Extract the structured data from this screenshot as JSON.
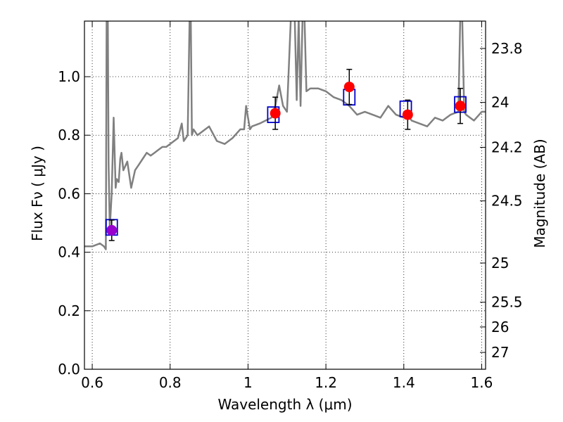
{
  "chart_data": {
    "type": "line",
    "title": "",
    "xlabel": "Wavelength  λ (μm)",
    "ylabel": "Flux  Fν  ( μJy )",
    "ylabel_right": "Magnitude (AB)",
    "xlim": [
      0.58,
      1.61
    ],
    "ylim": [
      0.0,
      1.19
    ],
    "grid": true,
    "x_ticks": [
      {
        "value": 0.6,
        "label": "0.6"
      },
      {
        "value": 0.8,
        "label": "0.8"
      },
      {
        "value": 1.0,
        "label": "1"
      },
      {
        "value": 1.2,
        "label": "1.2"
      },
      {
        "value": 1.4,
        "label": "1.4"
      },
      {
        "value": 1.6,
        "label": "1.6"
      }
    ],
    "y_ticks": [
      {
        "value": 0.0,
        "label": "0.0"
      },
      {
        "value": 0.2,
        "label": "0.2"
      },
      {
        "value": 0.4,
        "label": "0.4"
      },
      {
        "value": 0.6,
        "label": "0.6"
      },
      {
        "value": 0.8,
        "label": "0.8"
      },
      {
        "value": 1.0,
        "label": "1.0"
      }
    ],
    "right_ticks": [
      {
        "mag": 23.8,
        "label": "23.8"
      },
      {
        "mag": 24.0,
        "label": "24"
      },
      {
        "mag": 24.2,
        "label": "24.2"
      },
      {
        "mag": 24.5,
        "label": "24.5"
      },
      {
        "mag": 25.0,
        "label": "25"
      },
      {
        "mag": 25.5,
        "label": "25.5"
      },
      {
        "mag": 26.0,
        "label": "26"
      },
      {
        "mag": 27.0,
        "label": "27"
      }
    ],
    "colors": {
      "spectrum": "#808080",
      "observed": "#ff0000",
      "observed_first": "#9900cc",
      "model_box": "#0000cc",
      "errorbar": "#000000",
      "grid": "#000000"
    },
    "series": [
      {
        "name": "model spectrum",
        "kind": "line",
        "x": [
          0.58,
          0.6,
          0.62,
          0.63,
          0.635,
          0.637,
          0.64,
          0.642,
          0.645,
          0.65,
          0.655,
          0.66,
          0.663,
          0.668,
          0.672,
          0.675,
          0.68,
          0.69,
          0.7,
          0.71,
          0.72,
          0.73,
          0.74,
          0.75,
          0.76,
          0.77,
          0.78,
          0.79,
          0.8,
          0.81,
          0.82,
          0.83,
          0.835,
          0.84,
          0.845,
          0.85,
          0.853,
          0.856,
          0.86,
          0.87,
          0.88,
          0.9,
          0.92,
          0.94,
          0.96,
          0.98,
          0.99,
          0.995,
          1.0,
          1.005,
          1.01,
          1.03,
          1.06,
          1.07,
          1.08,
          1.09,
          1.1,
          1.11,
          1.115,
          1.12,
          1.125,
          1.13,
          1.135,
          1.14,
          1.145,
          1.15,
          1.16,
          1.18,
          1.2,
          1.22,
          1.24,
          1.26,
          1.28,
          1.3,
          1.32,
          1.34,
          1.36,
          1.38,
          1.4,
          1.41,
          1.42,
          1.44,
          1.46,
          1.48,
          1.5,
          1.52,
          1.54,
          1.545,
          1.55,
          1.555,
          1.56,
          1.58,
          1.6,
          1.61
        ],
        "y": [
          0.42,
          0.42,
          0.43,
          0.42,
          0.41,
          1.2,
          1.2,
          0.7,
          0.48,
          0.6,
          0.86,
          0.62,
          0.65,
          0.64,
          0.72,
          0.74,
          0.68,
          0.71,
          0.62,
          0.68,
          0.7,
          0.72,
          0.74,
          0.73,
          0.74,
          0.75,
          0.76,
          0.76,
          0.77,
          0.78,
          0.79,
          0.84,
          0.78,
          0.79,
          0.8,
          1.2,
          1.2,
          0.8,
          0.82,
          0.8,
          0.81,
          0.83,
          0.78,
          0.77,
          0.79,
          0.82,
          0.82,
          0.9,
          0.86,
          0.82,
          0.83,
          0.84,
          0.86,
          0.9,
          0.97,
          0.9,
          0.88,
          1.2,
          1.2,
          1.2,
          0.92,
          1.2,
          0.9,
          1.2,
          1.2,
          0.95,
          0.96,
          0.96,
          0.95,
          0.93,
          0.92,
          0.9,
          0.87,
          0.88,
          0.87,
          0.86,
          0.9,
          0.87,
          0.86,
          0.87,
          0.85,
          0.84,
          0.83,
          0.86,
          0.85,
          0.87,
          0.88,
          1.2,
          1.2,
          0.88,
          0.87,
          0.85,
          0.88,
          0.88
        ]
      },
      {
        "name": "model photometry",
        "kind": "square",
        "x": [
          0.65,
          1.065,
          1.26,
          1.405,
          1.545
        ],
        "y": [
          0.485,
          0.87,
          0.93,
          0.89,
          0.905
        ]
      },
      {
        "name": "observed",
        "kind": "errorbar",
        "x": [
          0.65,
          1.07,
          1.26,
          1.41,
          1.545
        ],
        "y": [
          0.475,
          0.875,
          0.965,
          0.87,
          0.9
        ],
        "yerr": [
          0.035,
          0.055,
          0.06,
          0.05,
          0.06
        ]
      }
    ]
  }
}
